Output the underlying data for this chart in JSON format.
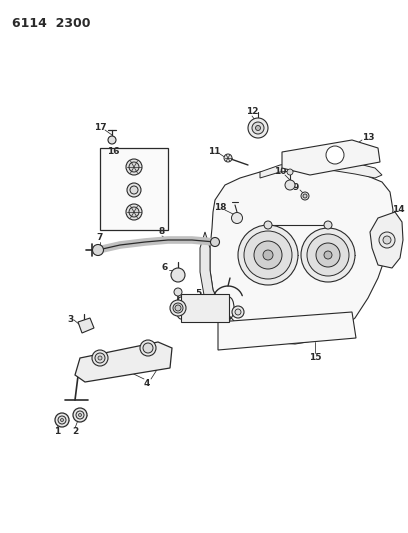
{
  "title": "6114  2300",
  "bg_color": "#ffffff",
  "lc": "#2a2a2a",
  "fig_width": 4.08,
  "fig_height": 5.33,
  "dpi": 100
}
